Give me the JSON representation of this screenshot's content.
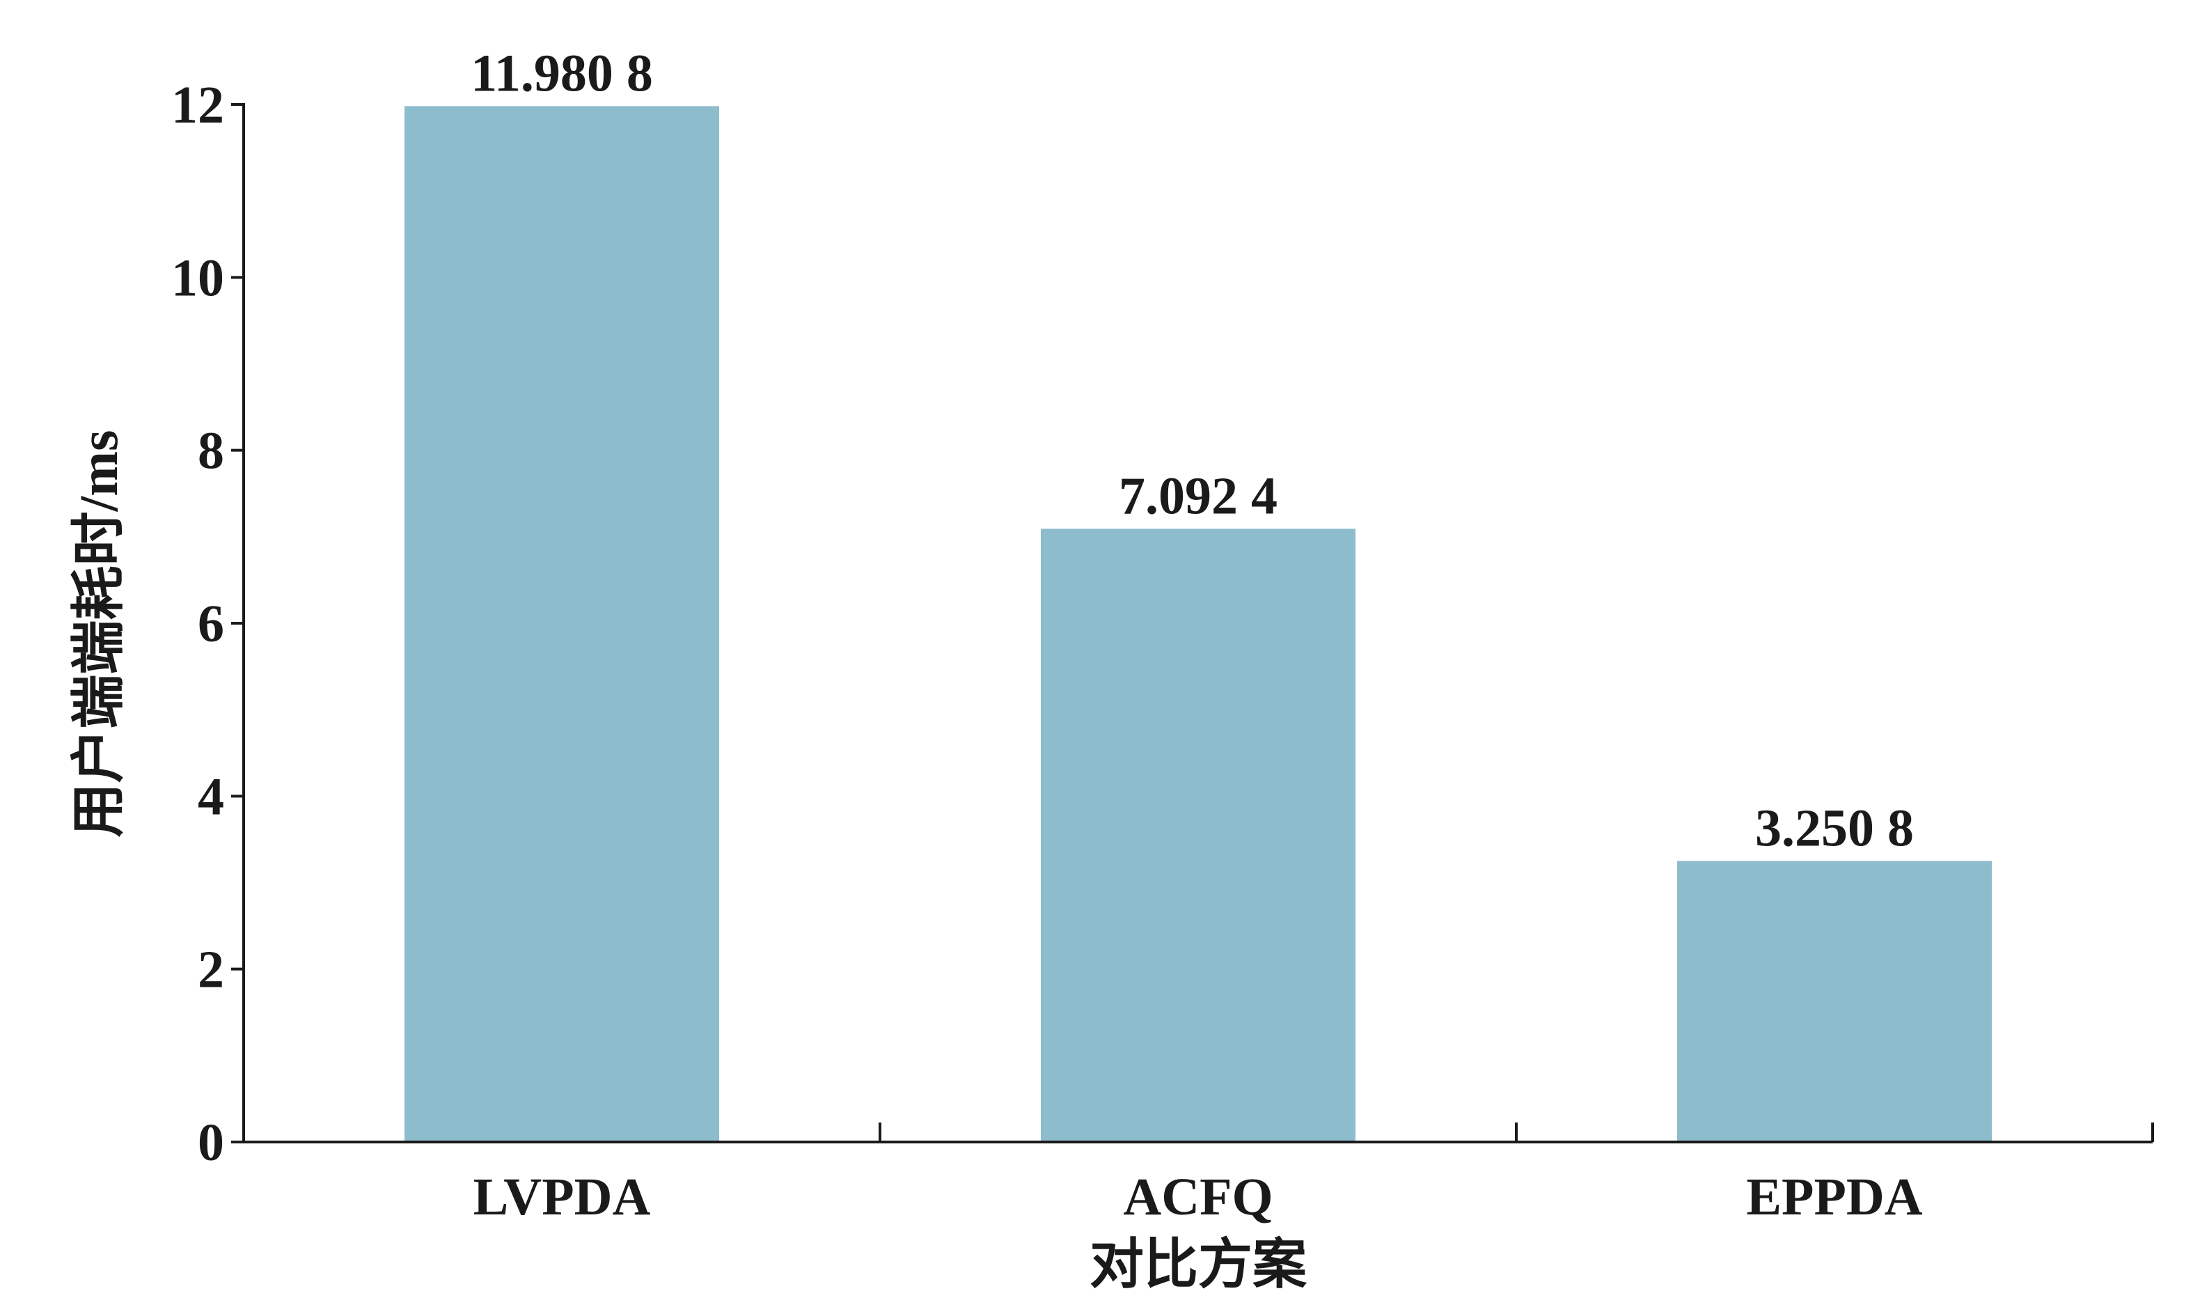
{
  "chart_data": {
    "type": "bar",
    "categories": [
      "LVPDA",
      "ACFQ",
      "EPPDA"
    ],
    "values": [
      11.9808,
      7.0924,
      3.2508
    ],
    "data_labels": [
      "11.980 8",
      "7.092 4",
      "3.250 8"
    ],
    "xlabel": "对比方案",
    "ylabel": "用户端端耗时/ms",
    "ylim": [
      0,
      12
    ],
    "yticks": [
      0,
      2,
      4,
      6,
      8,
      10,
      12
    ],
    "grid": false,
    "legend": "none",
    "bar_color": "#8dbccd",
    "axis_color": "#1a1a1a"
  }
}
